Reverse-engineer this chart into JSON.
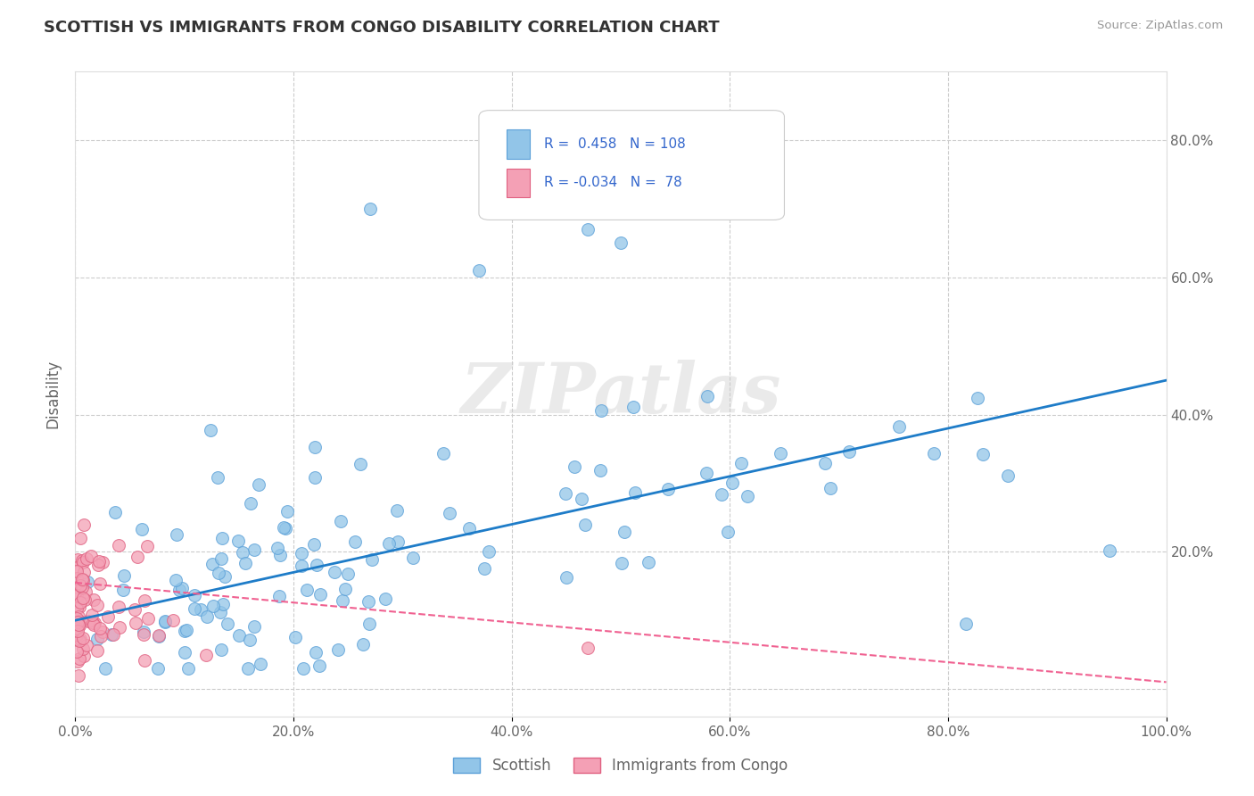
{
  "title": "SCOTTISH VS IMMIGRANTS FROM CONGO DISABILITY CORRELATION CHART",
  "source": "Source: ZipAtlas.com",
  "ylabel": "Disability",
  "xlim": [
    0,
    1.0
  ],
  "ylim": [
    -0.04,
    0.9
  ],
  "xticks": [
    0.0,
    0.2,
    0.4,
    0.6,
    0.8,
    1.0
  ],
  "yticks": [
    0.0,
    0.2,
    0.4,
    0.6,
    0.8
  ],
  "xtick_labels": [
    "0.0%",
    "20.0%",
    "40.0%",
    "60.0%",
    "80.0%",
    "100.0%"
  ],
  "ytick_labels_right": [
    "",
    "20.0%",
    "40.0%",
    "60.0%",
    "80.0%"
  ],
  "legend_labels": [
    "Scottish",
    "Immigrants from Congo"
  ],
  "R_scottish": 0.458,
  "N_scottish": 108,
  "R_congo": -0.034,
  "N_congo": 78,
  "scottish_color": "#92C5E8",
  "scottish_edge_color": "#5BA0D8",
  "congo_color": "#F4A0B5",
  "congo_edge_color": "#E06080",
  "scottish_line_color": "#1E7CC8",
  "congo_line_color": "#F06090",
  "background_color": "#FFFFFF",
  "grid_color": "#CCCCCC",
  "watermark_text": "ZIPatlas",
  "watermark_color": "#CCCCCC",
  "title_color": "#333333",
  "axis_label_color": "#666666",
  "tick_color": "#666666",
  "legend_text_color": "#3366CC",
  "source_color": "#999999",
  "scottish_line_start_y": 0.1,
  "scottish_line_end_y": 0.45,
  "congo_line_start_y": 0.155,
  "congo_line_end_y": 0.01
}
